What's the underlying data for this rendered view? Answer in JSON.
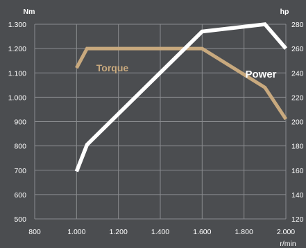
{
  "chart_data": {
    "type": "line",
    "xlabel": "r/min",
    "left_axis_unit": "Nm",
    "right_axis_unit": "hp",
    "x_ticks": [
      "800",
      "1.000",
      "1.200",
      "1.400",
      "1.600",
      "1.800",
      "2.000"
    ],
    "x_tick_values": [
      800,
      1000,
      1200,
      1400,
      1600,
      1800,
      2000
    ],
    "y_left_ticks": [
      "500",
      "600",
      "700",
      "800",
      "900",
      "1.000",
      "1.100",
      "1.200",
      "1.300"
    ],
    "y_left_values": [
      500,
      600,
      700,
      800,
      900,
      1000,
      1100,
      1200,
      1300
    ],
    "y_right_ticks": [
      "120",
      "140",
      "160",
      "180",
      "200",
      "220",
      "240",
      "260",
      "280"
    ],
    "y_right_values": [
      120,
      140,
      160,
      180,
      200,
      220,
      240,
      260,
      280
    ],
    "xlim": [
      800,
      2000
    ],
    "ylim_left": [
      500,
      1300
    ],
    "ylim_right": [
      120,
      280
    ],
    "grid": true,
    "series": [
      {
        "name": "Torque",
        "axis": "left",
        "color": "#c8a97e",
        "x": [
          1000,
          1050,
          1600,
          1900,
          2000
        ],
        "y": [
          1120,
          1200,
          1200,
          1040,
          910
        ]
      },
      {
        "name": "Power",
        "axis": "right",
        "color": "#ffffff",
        "x": [
          1000,
          1050,
          1600,
          1900,
          2000
        ],
        "y": [
          159,
          181,
          274,
          280,
          260
        ]
      }
    ]
  }
}
